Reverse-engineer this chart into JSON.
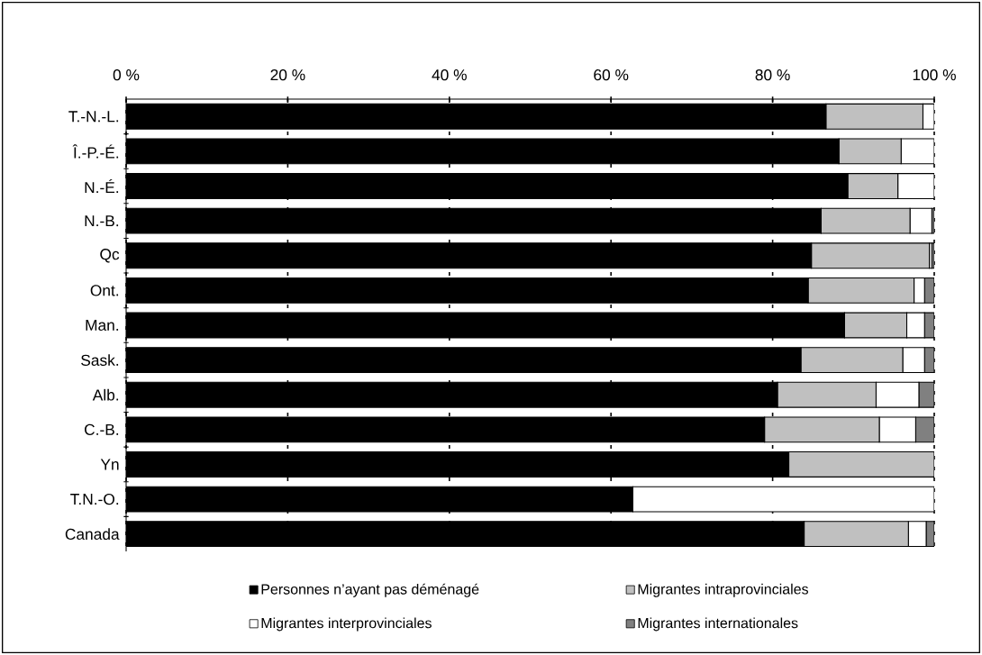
{
  "chart_data": {
    "type": "bar",
    "orientation": "horizontal",
    "stacked": true,
    "categories": [
      "T.-N.-L.",
      "Î.-P.-É.",
      "N.-É.",
      "N.-B.",
      "Qc",
      "Ont.",
      "Man.",
      "Sask.",
      "Alb.",
      "C.-B.",
      "Yn",
      "T.N.-O.",
      "Canada"
    ],
    "series": [
      {
        "name": "Personnes n’ayant pas déménagé",
        "color": "#000000",
        "values": [
          86.6,
          88.2,
          89.3,
          86.0,
          84.8,
          84.4,
          88.9,
          83.5,
          80.6,
          79.0,
          82.0,
          62.7,
          83.9
        ]
      },
      {
        "name": "Migrantes intraprovinciales",
        "color": "#c0c0c0",
        "values": [
          12.0,
          7.7,
          6.2,
          11.0,
          14.6,
          13.1,
          7.7,
          12.6,
          12.2,
          14.2,
          18.0,
          0,
          12.9
        ]
      },
      {
        "name": "Migrantes interprovinciales",
        "color": "#ffffff",
        "values": [
          1.4,
          4.1,
          4.5,
          2.7,
          0.3,
          1.3,
          2.2,
          2.7,
          5.3,
          4.5,
          0,
          37.3,
          2.2
        ]
      },
      {
        "name": "Migrantes internationales",
        "color": "#808080",
        "values": [
          0,
          0,
          0,
          0.3,
          0.3,
          1.2,
          1.2,
          1.2,
          1.9,
          2.3,
          0,
          0,
          1.0
        ]
      }
    ],
    "xlim": [
      0,
      100
    ],
    "xticks": [
      {
        "value": 0,
        "label": "0 %"
      },
      {
        "value": 20,
        "label": "20 %"
      },
      {
        "value": 40,
        "label": "40 %"
      },
      {
        "value": 60,
        "label": "60 %"
      },
      {
        "value": 80,
        "label": "80 %"
      },
      {
        "value": 100,
        "label": "100 %"
      }
    ],
    "grid": "x",
    "legend": "bottom"
  }
}
